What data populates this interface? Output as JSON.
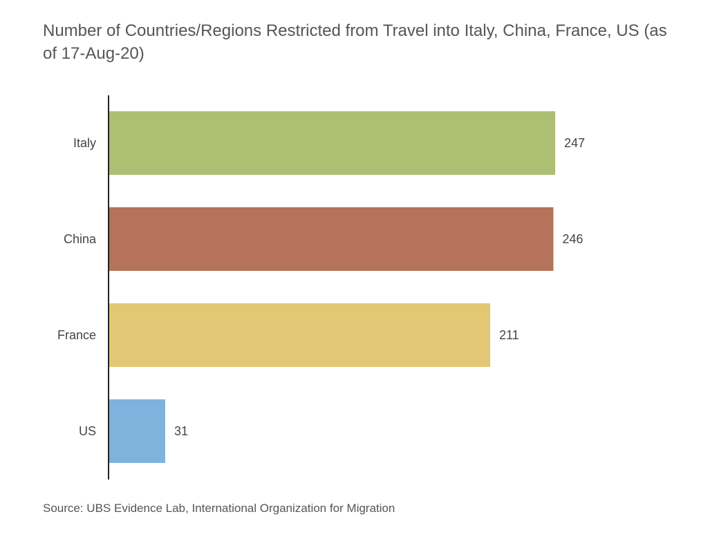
{
  "chart_data": {
    "type": "bar",
    "orientation": "horizontal",
    "title": "Number of Countries/Regions Restricted from Travel into Italy, China, France, US (as of 17-Aug-20)",
    "categories": [
      "Italy",
      "China",
      "France",
      "US"
    ],
    "values": [
      247,
      246,
      211,
      31
    ],
    "data_labels": [
      "247",
      "246",
      "211",
      "31"
    ],
    "colors": [
      "#acbf72",
      "#b4735a",
      "#e2c874",
      "#7fb3dd"
    ],
    "xlim": [
      0,
      247
    ],
    "grid": false,
    "legend": "none",
    "source": "Source: UBS Evidence Lab, International Organization for Migration"
  }
}
